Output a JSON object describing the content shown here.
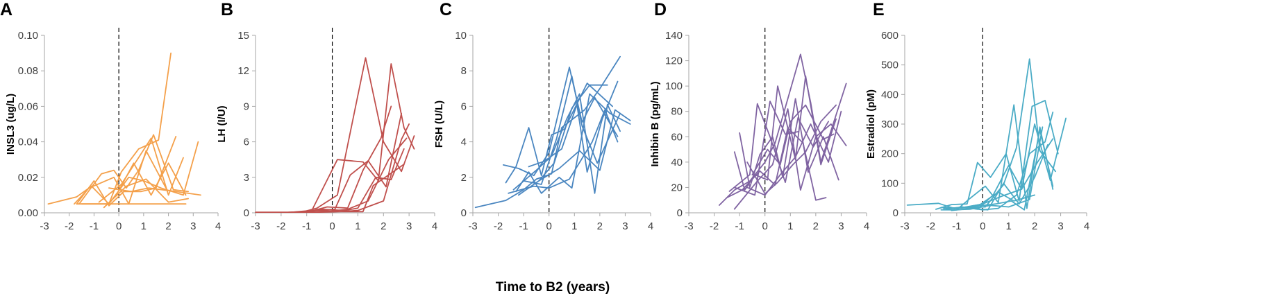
{
  "figure_xlabel": "Time to B2 (years)",
  "chart_data": [
    {
      "panel": "A",
      "type": "line",
      "ylabel": "INSL3 (ug/L)",
      "color": "#F4A04A",
      "xlim": [
        -3,
        4
      ],
      "ylim": [
        0,
        0.1
      ],
      "xticks": [
        "-3",
        "-2",
        "-1",
        "0",
        "1",
        "2",
        "3",
        "4"
      ],
      "yticks": [
        "0.00",
        "0.02",
        "0.04",
        "0.06",
        "0.08",
        "0.10"
      ],
      "yticks_values": [
        0,
        0.02,
        0.04,
        0.06,
        0.08,
        0.1
      ],
      "series": [
        {
          "x": [
            -2.85,
            -1.7,
            -1.1,
            -0.4,
            0.1,
            0.8,
            1.6,
            2.1
          ],
          "y": [
            0.005,
            0.009,
            0.015,
            0.005,
            0.023,
            0.036,
            0.041,
            0.09
          ]
        },
        {
          "x": [
            -1.7,
            -1.0,
            -0.4,
            0.2,
            0.9,
            1.5,
            2.3
          ],
          "y": [
            0.005,
            0.018,
            0.004,
            0.012,
            0.012,
            0.014,
            0.043
          ]
        },
        {
          "x": [
            -1.8,
            -1.2,
            -0.2,
            0.4,
            1.1,
            1.9
          ],
          "y": [
            0.005,
            0.014,
            0.02,
            0.005,
            0.035,
            0.014
          ]
        },
        {
          "x": [
            -1.6,
            -0.7,
            -0.2,
            0.3,
            0.8,
            1.4,
            2.2,
            2.8
          ],
          "y": [
            0.005,
            0.022,
            0.024,
            0.014,
            0.024,
            0.044,
            0.013,
            0.012
          ]
        },
        {
          "x": [
            -1.5,
            -0.4,
            0.4,
            1.0,
            1.7,
            2.6,
            3.2
          ],
          "y": [
            0.005,
            0.005,
            0.02,
            0.018,
            0.014,
            0.01,
            0.04
          ]
        },
        {
          "x": [
            -0.8,
            0.1,
            1.3,
            2.0,
            2.6
          ],
          "y": [
            0.006,
            0.016,
            0.042,
            0.01,
            0.031
          ]
        },
        {
          "x": [
            -0.4,
            0.5,
            1.2,
            2.3,
            3.3
          ],
          "y": [
            0.014,
            0.012,
            0.014,
            0.012,
            0.01
          ]
        },
        {
          "x": [
            -0.1,
            0.6,
            1.3,
            2.0,
            2.7
          ],
          "y": [
            0.01,
            0.028,
            0.01,
            0.028,
            0.01
          ]
        },
        {
          "x": [
            -1.7,
            2.7
          ],
          "y": [
            0.005,
            0.005
          ]
        },
        {
          "x": [
            -0.6,
            0.3,
            1.1,
            2.0,
            2.8
          ],
          "y": [
            0.003,
            0.015,
            0.019,
            0.006,
            0.008
          ]
        }
      ]
    },
    {
      "panel": "B",
      "type": "line",
      "ylabel": "LH (I/U)",
      "color": "#C0504D",
      "xlim": [
        -3,
        4
      ],
      "ylim": [
        0,
        15
      ],
      "xticks": [
        "-3",
        "-2",
        "-1",
        "0",
        "1",
        "2",
        "3",
        "4"
      ],
      "yticks": [
        "0",
        "3",
        "6",
        "9",
        "12",
        "15"
      ],
      "yticks_values": [
        0,
        3,
        6,
        9,
        12,
        15
      ],
      "series": [
        {
          "x": [
            -3.0,
            -1.2,
            -0.6,
            0.2,
            1.3,
            2.0,
            2.7,
            3.2
          ],
          "y": [
            0.05,
            0.05,
            0.4,
            1.5,
            13.1,
            6.0,
            3.5,
            6.5
          ]
        },
        {
          "x": [
            -1.6,
            -0.8,
            0.2,
            1.2,
            1.8,
            2.3,
            2.8,
            3.2
          ],
          "y": [
            0.05,
            0.2,
            4.5,
            4.3,
            2.7,
            12.6,
            7.2,
            5.4
          ]
        },
        {
          "x": [
            -1.4,
            -0.6,
            0.1,
            0.7,
            1.4,
            2.1,
            2.7
          ],
          "y": [
            0.05,
            0.2,
            0.3,
            3.2,
            4.4,
            2.2,
            8.4
          ]
        },
        {
          "x": [
            -1.7,
            -0.9,
            -0.2,
            0.6,
            1.2,
            1.9,
            2.3
          ],
          "y": [
            0.05,
            0.1,
            0.5,
            0.4,
            3.6,
            6.3,
            9.0
          ]
        },
        {
          "x": [
            -1.3,
            -0.2,
            0.6,
            1.4,
            2.2,
            2.9
          ],
          "y": [
            0.05,
            0.1,
            0.3,
            1.0,
            4.5,
            6.3
          ]
        },
        {
          "x": [
            -1.2,
            -0.4,
            0.5,
            1.0,
            1.7,
            2.3,
            2.8
          ],
          "y": [
            0.05,
            0.3,
            0.2,
            0.4,
            3.0,
            2.8,
            5.4
          ]
        },
        {
          "x": [
            -1.5,
            -0.6,
            0.4,
            1.2,
            1.6,
            2.2,
            2.8
          ],
          "y": [
            0.05,
            0.2,
            0.1,
            0.1,
            2.3,
            3.2,
            4.1
          ]
        },
        {
          "x": [
            -1.6,
            -0.5,
            0.3,
            1.0,
            2.0,
            2.7,
            3.0
          ],
          "y": [
            0.05,
            0.05,
            0.1,
            0.2,
            1.0,
            6.2,
            7.5
          ]
        }
      ]
    },
    {
      "panel": "C",
      "type": "line",
      "ylabel": "FSH (U/L)",
      "color": "#4A86C0",
      "xlim": [
        -3,
        4
      ],
      "ylim": [
        0,
        10
      ],
      "xticks": [
        "-3",
        "-2",
        "-1",
        "0",
        "1",
        "2",
        "3",
        "4"
      ],
      "yticks": [
        "0",
        "2",
        "4",
        "6",
        "8",
        "10"
      ],
      "yticks_values": [
        0,
        2,
        4,
        6,
        8,
        10
      ],
      "series": [
        {
          "x": [
            -2.9,
            -1.7,
            -1.0,
            -0.5,
            0.1,
            0.5,
            1.4,
            2.0,
            2.8
          ],
          "y": [
            0.3,
            0.7,
            1.3,
            1.9,
            2.2,
            4.8,
            5.8,
            7.0,
            8.8
          ]
        },
        {
          "x": [
            -1.8,
            -1.2,
            -0.6,
            0.0,
            0.4,
            0.8,
            1.3,
            1.8,
            2.7
          ],
          "y": [
            2.7,
            2.5,
            2.1,
            3.4,
            5.8,
            8.2,
            5.1,
            6.5,
            4.3
          ]
        },
        {
          "x": [
            -1.7,
            -1.3,
            -0.8,
            -0.3,
            0.1,
            0.6,
            1.5,
            2.5
          ],
          "y": [
            1.7,
            2.6,
            4.8,
            2.1,
            4.4,
            4.7,
            7.3,
            6.0
          ]
        },
        {
          "x": [
            -1.3,
            -0.8,
            -0.3,
            0.4,
            0.9,
            1.6,
            2.4,
            3.2
          ],
          "y": [
            1.2,
            2.3,
            1.1,
            2.0,
            1.4,
            6.7,
            5.6,
            5.0
          ]
        },
        {
          "x": [
            -1.4,
            -0.5,
            0.1,
            0.7,
            1.2,
            1.8,
            2.3,
            2.8
          ],
          "y": [
            1.3,
            2.4,
            3.2,
            5.3,
            6.7,
            1.1,
            6.1,
            4.6
          ]
        },
        {
          "x": [
            -1.0,
            -0.3,
            0.3,
            0.9,
            1.3,
            1.9,
            2.8
          ],
          "y": [
            1.8,
            1.6,
            4.2,
            7.7,
            4.9,
            2.8,
            5.6
          ]
        },
        {
          "x": [
            -0.8,
            -0.2,
            0.5,
            1.1,
            1.5,
            2.1,
            2.7
          ],
          "y": [
            2.6,
            2.9,
            3.6,
            6.1,
            2.3,
            5.3,
            7.4
          ]
        },
        {
          "x": [
            -1.6,
            -0.6,
            0.0,
            0.8,
            1.7,
            2.2,
            2.7
          ],
          "y": [
            1.1,
            1.5,
            1.4,
            1.9,
            4.0,
            5.8,
            4.0
          ]
        },
        {
          "x": [
            -0.4,
            0.2,
            0.9,
            1.6,
            2.3
          ],
          "y": [
            1.8,
            2.8,
            5.9,
            7.2,
            7.2
          ]
        },
        {
          "x": [
            -1.2,
            -0.4,
            0.4,
            1.2,
            2.0,
            2.6,
            3.2
          ],
          "y": [
            1.0,
            1.8,
            2.5,
            3.5,
            2.4,
            5.8,
            5.2
          ]
        }
      ]
    },
    {
      "panel": "D",
      "type": "line",
      "ylabel": "Inhibin B (pg/mL)",
      "color": "#8064A2",
      "xlim": [
        -3,
        4
      ],
      "ylim": [
        0,
        140
      ],
      "xticks": [
        "-3",
        "-2",
        "-1",
        "0",
        "1",
        "2",
        "3",
        "4"
      ],
      "yticks": [
        "0",
        "20",
        "40",
        "60",
        "80",
        "100",
        "120",
        "140"
      ],
      "yticks_values": [
        0,
        20,
        40,
        60,
        80,
        100,
        120,
        140
      ],
      "series": [
        {
          "x": [
            -1.8,
            -1.2,
            -0.6,
            0.0,
            0.4,
            1.4,
            1.8,
            2.2,
            3.2
          ],
          "y": [
            6,
            18,
            25,
            40,
            55,
            125,
            87,
            40,
            102
          ]
        },
        {
          "x": [
            -1.2,
            -0.8,
            -0.4,
            0.1,
            0.5,
            1.2,
            1.6,
            2.2,
            2.8
          ],
          "y": [
            48,
            18,
            30,
            26,
            100,
            42,
            108,
            38,
            74
          ]
        },
        {
          "x": [
            -1.4,
            -0.6,
            -0.3,
            0.2,
            0.8,
            1.3,
            1.9,
            2.5
          ],
          "y": [
            17,
            30,
            86,
            60,
            24,
            75,
            52,
            72
          ]
        },
        {
          "x": [
            -1.0,
            -0.6,
            -0.2,
            0.3,
            0.7,
            1.2,
            1.7,
            2.3,
            2.9
          ],
          "y": [
            63,
            20,
            46,
            60,
            28,
            90,
            32,
            60,
            26
          ]
        },
        {
          "x": [
            -1.2,
            -0.3,
            0.3,
            0.9,
            1.4,
            2.0,
            2.6,
            3.2
          ],
          "y": [
            3,
            25,
            38,
            82,
            18,
            60,
            70,
            53
          ]
        },
        {
          "x": [
            -0.9,
            -0.2,
            0.4,
            0.9,
            1.5,
            2.0,
            2.4
          ],
          "y": [
            18,
            33,
            22,
            67,
            55,
            10,
            12
          ]
        },
        {
          "x": [
            -0.7,
            0.0,
            0.5,
            1.1,
            1.6,
            2.2,
            2.8
          ],
          "y": [
            40,
            15,
            24,
            38,
            48,
            72,
            85
          ]
        },
        {
          "x": [
            -0.5,
            0.1,
            0.6,
            1.0,
            1.6,
            2.3,
            2.7
          ],
          "y": [
            30,
            50,
            38,
            72,
            85,
            58,
            62
          ]
        },
        {
          "x": [
            -1.2,
            -0.4,
            0.2,
            0.8,
            1.3
          ],
          "y": [
            20,
            14,
            88,
            62,
            64
          ]
        },
        {
          "x": [
            -1.5,
            -0.7,
            0.0,
            0.6,
            1.2,
            1.8,
            2.5,
            3.0
          ],
          "y": [
            12,
            20,
            14,
            30,
            44,
            70,
            40,
            80
          ]
        }
      ]
    },
    {
      "panel": "E",
      "type": "line",
      "ylabel": "Estradiol (pM)",
      "color": "#4BACC6",
      "xlim": [
        -3,
        4
      ],
      "ylim": [
        0,
        600
      ],
      "xticks": [
        "-3",
        "-2",
        "-1",
        "0",
        "1",
        "2",
        "3",
        "4"
      ],
      "yticks": [
        "0",
        "100",
        "200",
        "300",
        "400",
        "500",
        "600"
      ],
      "yticks_values": [
        0,
        100,
        200,
        300,
        400,
        500,
        600
      ],
      "series": [
        {
          "x": [
            -2.9,
            -1.7,
            -1.1,
            -0.4,
            0.1,
            0.8,
            1.3,
            1.8,
            2.2,
            2.8
          ],
          "y": [
            26,
            32,
            15,
            18,
            20,
            95,
            220,
            520,
            210,
            140
          ]
        },
        {
          "x": [
            -1.8,
            -1.2,
            -0.6,
            -0.2,
            0.3,
            0.9,
            1.4,
            1.9,
            2.4,
            2.9
          ],
          "y": [
            12,
            28,
            30,
            170,
            120,
            200,
            40,
            360,
            380,
            200
          ]
        },
        {
          "x": [
            -1.6,
            -1.0,
            -0.5,
            0.1,
            0.6,
            1.2,
            1.7,
            2.2,
            2.7
          ],
          "y": [
            10,
            10,
            48,
            90,
            35,
            365,
            15,
            290,
            80
          ]
        },
        {
          "x": [
            -1.4,
            -0.8,
            -0.2,
            0.4,
            1.0,
            1.5,
            2.0,
            2.6,
            3.2
          ],
          "y": [
            12,
            20,
            12,
            60,
            160,
            80,
            300,
            110,
            320
          ]
        },
        {
          "x": [
            -1.2,
            -0.4,
            0.2,
            0.8,
            1.4,
            2.0,
            2.5
          ],
          "y": [
            8,
            15,
            10,
            100,
            30,
            120,
            230
          ]
        },
        {
          "x": [
            -1.0,
            -0.3,
            0.5,
            1.1,
            1.6,
            2.2,
            2.7
          ],
          "y": [
            15,
            22,
            30,
            40,
            10,
            280,
            90
          ]
        },
        {
          "x": [
            -0.8,
            0.0,
            0.6,
            1.3,
            1.8,
            2.4,
            2.7
          ],
          "y": [
            20,
            10,
            15,
            60,
            200,
            240,
            340
          ]
        },
        {
          "x": [
            -1.5,
            -0.6,
            0.0,
            0.7,
            1.5,
            2.1,
            2.7
          ],
          "y": [
            14,
            20,
            30,
            55,
            80,
            170,
            250
          ]
        },
        {
          "x": [
            -1.2,
            -0.5,
            0.3,
            1.0,
            1.8,
            2.3
          ],
          "y": [
            10,
            12,
            25,
            20,
            45,
            290
          ]
        },
        {
          "x": [
            -1.6,
            -0.9,
            -0.1,
            0.6,
            1.2,
            2.0
          ],
          "y": [
            18,
            16,
            28,
            70,
            40,
            60
          ]
        }
      ]
    }
  ]
}
